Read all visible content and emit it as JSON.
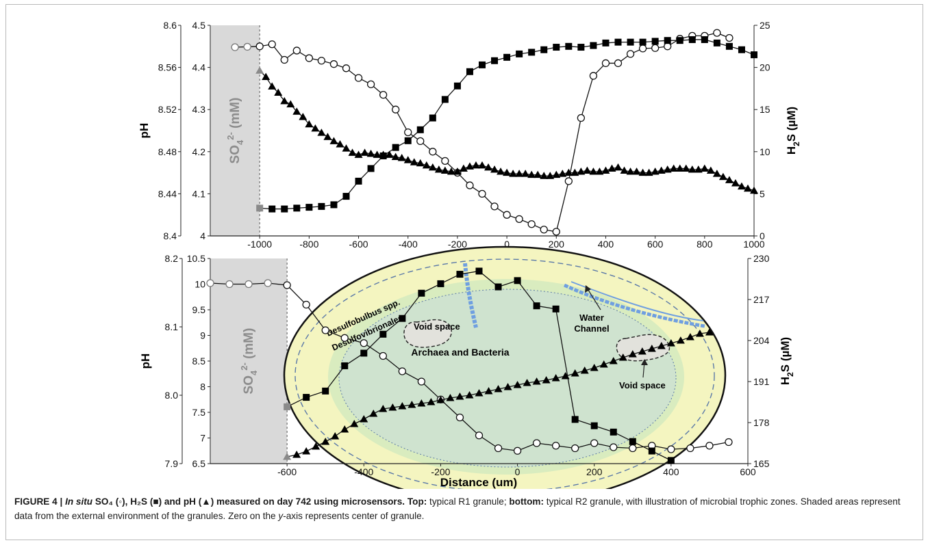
{
  "caption": {
    "label": "FIGURE 4 | ",
    "title_italic": "In situ",
    "title_rest": " SO₄ (◦), H₂S (■) and pH (▲) measured on day 742 using microsensors.",
    "top_label": "Top:",
    "top_text": " typical R1 granule; ",
    "bottom_label": "bottom:",
    "bottom_text": " typical R2 granule, with illustration of microbial trophic zones. Shaded areas represent data from the external environment of the granules. Zero on the ",
    "axis_italic": "y",
    "end_text": "-axis represents center of granule."
  },
  "chart_data": [
    {
      "type": "line",
      "panel": "top",
      "xlabel": "",
      "x_range": [
        -1200,
        1000
      ],
      "x_ticks": [
        -1000,
        -800,
        -600,
        -400,
        -200,
        0,
        200,
        400,
        600,
        800,
        1000
      ],
      "ph_axis": {
        "label": "pH",
        "range": [
          8.4,
          8.6
        ],
        "ticks": [
          "8.4",
          "8.44",
          "8.48",
          "8.52",
          "8.56",
          "8.6"
        ]
      },
      "so4_axis": {
        "label": "SO4 2- (mM)",
        "label_main": "SO",
        "label_sub": "4",
        "label_sup": "2-",
        "label_unit": " (mM)",
        "range": [
          4.0,
          4.5
        ],
        "ticks": [
          "4",
          "4.1",
          "4.2",
          "4.3",
          "4.4",
          "4.5"
        ]
      },
      "h2s_axis": {
        "label": "H2S (µM)",
        "label_main": "H",
        "label_sub": "2",
        "label_unit": "S (µM)",
        "range": [
          0,
          25
        ],
        "ticks": [
          "0",
          "5",
          "10",
          "15",
          "20",
          "25"
        ]
      },
      "shaded_range": [
        -1200,
        -1000
      ],
      "series": [
        {
          "marker": "circle",
          "axis": "so4",
          "x": [
            -1100,
            -1050,
            -1000,
            -950,
            -900,
            -850,
            -800,
            -750,
            -700,
            -650,
            -600,
            -550,
            -500,
            -450,
            -400,
            -350,
            -300,
            -250,
            -200,
            -150,
            -100,
            -50,
            0,
            50,
            100,
            150,
            200,
            250,
            300,
            350,
            400,
            450,
            500,
            550,
            600,
            650,
            700,
            750,
            800,
            850,
            900
          ],
          "y": [
            4.448,
            4.449,
            4.45,
            4.455,
            4.418,
            4.44,
            4.422,
            4.416,
            4.408,
            4.398,
            4.375,
            4.36,
            4.335,
            4.3,
            4.246,
            4.225,
            4.2,
            4.178,
            4.15,
            4.12,
            4.1,
            4.07,
            4.05,
            4.04,
            4.028,
            4.015,
            4.01,
            4.13,
            4.28,
            4.38,
            4.41,
            4.41,
            4.432,
            4.445,
            4.446,
            4.45,
            4.468,
            4.475,
            4.475,
            4.482,
            4.47
          ]
        },
        {
          "marker": "square",
          "axis": "h2s",
          "x": [
            -1000,
            -950,
            -900,
            -850,
            -800,
            -750,
            -700,
            -650,
            -600,
            -550,
            -500,
            -450,
            -400,
            -350,
            -300,
            -250,
            -200,
            -150,
            -100,
            -50,
            0,
            50,
            100,
            150,
            200,
            250,
            300,
            350,
            400,
            450,
            500,
            550,
            600,
            650,
            700,
            750,
            800,
            850,
            900,
            950,
            1000
          ],
          "y": [
            3.3,
            3.2,
            3.2,
            3.3,
            3.4,
            3.5,
            3.7,
            4.7,
            6.5,
            8.0,
            9.5,
            10.5,
            11.3,
            12.6,
            14.0,
            16.2,
            17.8,
            19.5,
            20.3,
            20.8,
            21.2,
            21.6,
            21.8,
            22.1,
            22.4,
            22.5,
            22.4,
            22.6,
            22.9,
            23.0,
            23.0,
            23.0,
            23.1,
            23.2,
            23.2,
            23.3,
            23.3,
            22.9,
            22.5,
            22.1,
            21.5
          ]
        },
        {
          "marker": "triangle",
          "axis": "ph",
          "x": [
            -1000,
            -975,
            -950,
            -925,
            -900,
            -875,
            -850,
            -825,
            -800,
            -775,
            -750,
            -725,
            -700,
            -675,
            -650,
            -625,
            -600,
            -575,
            -550,
            -525,
            -500,
            -475,
            -450,
            -425,
            -400,
            -375,
            -350,
            -325,
            -300,
            -275,
            -250,
            -225,
            -200,
            -175,
            -150,
            -125,
            -100,
            -75,
            -50,
            -25,
            0,
            25,
            50,
            75,
            100,
            125,
            150,
            175,
            200,
            225,
            250,
            275,
            300,
            325,
            350,
            375,
            400,
            425,
            450,
            475,
            500,
            525,
            550,
            575,
            600,
            625,
            650,
            675,
            700,
            725,
            750,
            775,
            800,
            825,
            850,
            875,
            900,
            925,
            950,
            975,
            1000
          ],
          "y": [
            8.557,
            8.551,
            8.542,
            8.536,
            8.528,
            8.525,
            8.518,
            8.513,
            8.506,
            8.502,
            8.498,
            8.494,
            8.49,
            8.487,
            8.483,
            8.479,
            8.477,
            8.479,
            8.478,
            8.477,
            8.477,
            8.477,
            8.475,
            8.474,
            8.472,
            8.47,
            8.469,
            8.467,
            8.465,
            8.463,
            8.462,
            8.461,
            8.461,
            8.464,
            8.466,
            8.467,
            8.467,
            8.465,
            8.463,
            8.461,
            8.46,
            8.459,
            8.459,
            8.459,
            8.458,
            8.458,
            8.457,
            8.457,
            8.458,
            8.459,
            8.46,
            8.46,
            8.461,
            8.462,
            8.461,
            8.461,
            8.462,
            8.464,
            8.465,
            8.462,
            8.461,
            8.461,
            8.46,
            8.46,
            8.461,
            8.462,
            8.463,
            8.464,
            8.464,
            8.464,
            8.463,
            8.463,
            8.464,
            8.462,
            8.459,
            8.456,
            8.453,
            8.45,
            8.447,
            8.445,
            8.443
          ]
        }
      ]
    },
    {
      "type": "line",
      "panel": "bottom",
      "xlabel": "Distance (um)",
      "x_range": [
        -800,
        600
      ],
      "x_ticks": [
        -600,
        -400,
        -200,
        0,
        200,
        400,
        600
      ],
      "ph_axis": {
        "label": "pH",
        "range": [
          7.9,
          8.2
        ],
        "ticks": [
          "7.9",
          "8.0",
          "8.1",
          "8.2"
        ]
      },
      "so4_axis": {
        "label": "SO4 2- (mM)",
        "label_main": "SO",
        "label_sub": "4",
        "label_sup": "2-",
        "label_unit": " (mM)",
        "range": [
          6.5,
          10.5
        ],
        "ticks": [
          "6.5",
          "7",
          "7.5",
          "8",
          "8.5",
          "9",
          "9.5",
          "10",
          "10.5"
        ]
      },
      "h2s_axis": {
        "label": "H2S (µM)",
        "label_main": "H",
        "label_sub": "2",
        "label_unit": "S (µM)",
        "range": [
          165,
          230
        ],
        "ticks": [
          "165",
          "178",
          "191",
          "204",
          "217",
          "230"
        ]
      },
      "shaded_range": [
        -800,
        -600
      ],
      "illustration": {
        "outer_zone_label1": "Desulfobulbus spp.",
        "outer_zone_label2": "Desulfovibrionales",
        "core_label": "Archaea and Bacteria",
        "void_label_1": "Void space",
        "void_label_2": "Void space",
        "water_label_1": "Water",
        "water_label_2": "Channel"
      },
      "series": [
        {
          "marker": "circle",
          "axis": "so4",
          "x": [
            -800,
            -750,
            -700,
            -650,
            -600,
            -550,
            -500,
            -450,
            -400,
            -350,
            -300,
            -250,
            -200,
            -150,
            -100,
            -50,
            0,
            50,
            100,
            150,
            200,
            250,
            300,
            350,
            400,
            450,
            500,
            550
          ],
          "y": [
            10.02,
            10.0,
            10.0,
            10.02,
            9.98,
            9.6,
            9.1,
            8.95,
            8.85,
            8.6,
            8.3,
            8.1,
            7.75,
            7.4,
            7.05,
            6.8,
            6.75,
            6.9,
            6.85,
            6.8,
            6.9,
            6.82,
            6.8,
            6.85,
            6.78,
            6.8,
            6.85,
            6.92
          ]
        },
        {
          "marker": "square",
          "axis": "h2s",
          "x": [
            -600,
            -550,
            -500,
            -450,
            -400,
            -350,
            -300,
            -250,
            -200,
            -150,
            -100,
            -50,
            0,
            50,
            100,
            150,
            200,
            250,
            300,
            350,
            400
          ],
          "y": [
            183,
            186,
            188,
            196,
            200,
            206,
            211,
            219,
            222,
            225,
            226,
            221,
            223,
            215,
            214,
            179,
            177,
            175,
            172,
            169,
            166
          ]
        },
        {
          "marker": "triangle",
          "axis": "ph",
          "x": [
            -600,
            -575,
            -550,
            -525,
            -500,
            -475,
            -450,
            -425,
            -400,
            -375,
            -350,
            -325,
            -300,
            -275,
            -250,
            -225,
            -200,
            -175,
            -150,
            -125,
            -100,
            -75,
            -50,
            -25,
            0,
            25,
            50,
            75,
            100,
            125,
            150,
            175,
            200,
            225,
            250,
            275,
            300,
            325,
            350,
            375,
            400,
            425,
            450,
            475,
            500
          ],
          "y": [
            7.91,
            7.913,
            7.918,
            7.925,
            7.932,
            7.94,
            7.95,
            7.958,
            7.965,
            7.973,
            7.98,
            7.982,
            7.984,
            7.986,
            7.988,
            7.99,
            7.993,
            7.996,
            7.998,
            8.0,
            8.003,
            8.006,
            8.009,
            8.012,
            8.015,
            8.018,
            8.02,
            8.022,
            8.025,
            8.028,
            8.032,
            8.036,
            8.04,
            8.045,
            8.05,
            8.055,
            8.06,
            8.064,
            8.068,
            8.072,
            8.076,
            8.08,
            8.085,
            8.09,
            8.092
          ]
        }
      ]
    }
  ]
}
